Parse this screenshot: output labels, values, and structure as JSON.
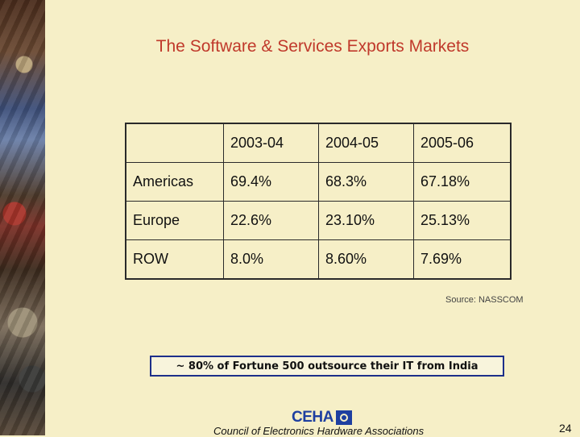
{
  "slide": {
    "title": "The Software & Services Exports Markets",
    "source": "Source: NASSCOM",
    "callout": "~ 80% of Fortune 500 outsource their IT from India",
    "logo_text": "CEHA",
    "footer": "Council of Electronics Hardware Associations",
    "page_number": "24"
  },
  "table": {
    "header": [
      "",
      "2003-04",
      "2004-05",
      "2005-06"
    ],
    "rows": [
      [
        "Americas",
        "69.4%",
        "68.3%",
        "67.18%"
      ],
      [
        "Europe",
        "22.6%",
        "23.10%",
        "25.13%"
      ],
      [
        "ROW",
        "8.0%",
        "8.60%",
        "7.69%"
      ]
    ]
  },
  "colors": {
    "background": "#f6efc7",
    "title": "#c0392b",
    "callout_border": "#1d2f8a",
    "logo": "#1e3fa0"
  }
}
